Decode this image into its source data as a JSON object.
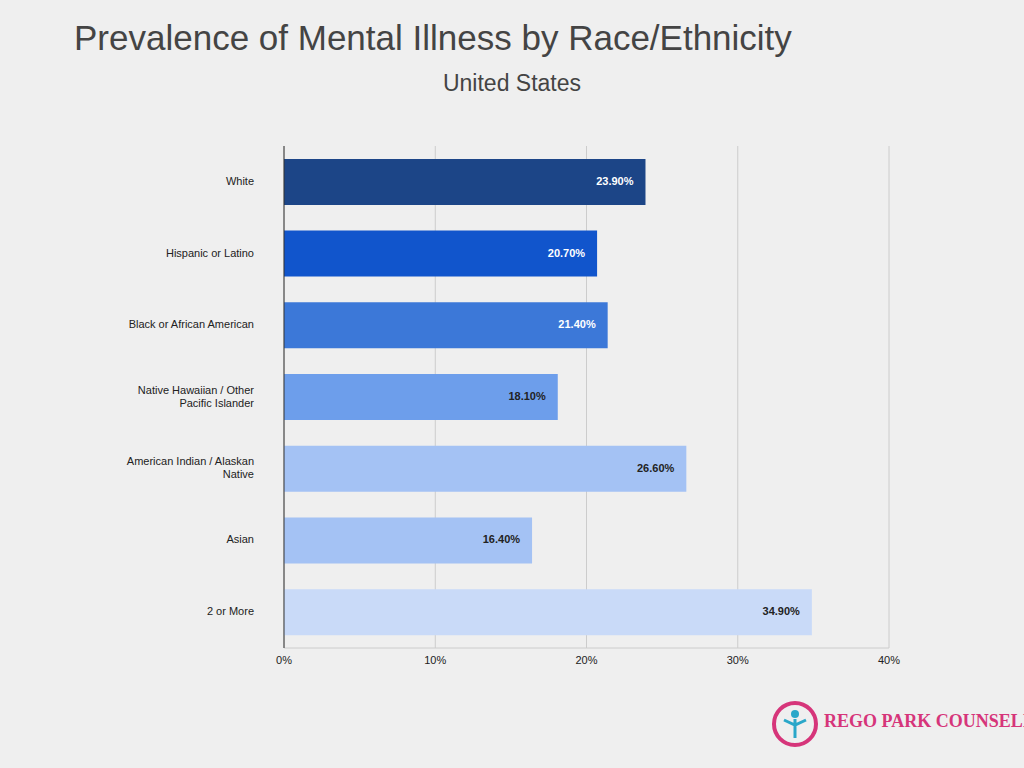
{
  "chart_data": {
    "type": "bar",
    "title": "Prevalence of Mental Illness by Race/Ethnicity",
    "subtitle": "United States",
    "orientation": "horizontal",
    "categories": [
      "White",
      "Hispanic or Latino",
      "Black or African American",
      "Native Hawaiian / Other Pacific Islander",
      "American Indian / Alaskan Native",
      "Asian",
      "2 or More"
    ],
    "values": [
      23.9,
      20.7,
      21.4,
      18.1,
      26.6,
      16.4,
      34.9
    ],
    "value_labels": [
      "23.90%",
      "20.70%",
      "21.40%",
      "18.10%",
      "26.60%",
      "16.40%",
      "34.90%"
    ],
    "data_labels": true,
    "colors": [
      "#1c4587",
      "#1155cc",
      "#3c78d8",
      "#6d9eeb",
      "#a4c2f4",
      "#a4c2f4",
      "#c9daf8"
    ],
    "xlim": [
      0,
      40
    ],
    "xticks": [
      {
        "value": 0,
        "label": "0%"
      },
      {
        "value": 10,
        "label": "10%"
      },
      {
        "value": 20,
        "label": "20%"
      },
      {
        "value": 30,
        "label": "30%"
      },
      {
        "value": 40,
        "label": "40%"
      }
    ],
    "grid": true,
    "annotations": [
      "REGO PARK COUNSELING"
    ]
  }
}
